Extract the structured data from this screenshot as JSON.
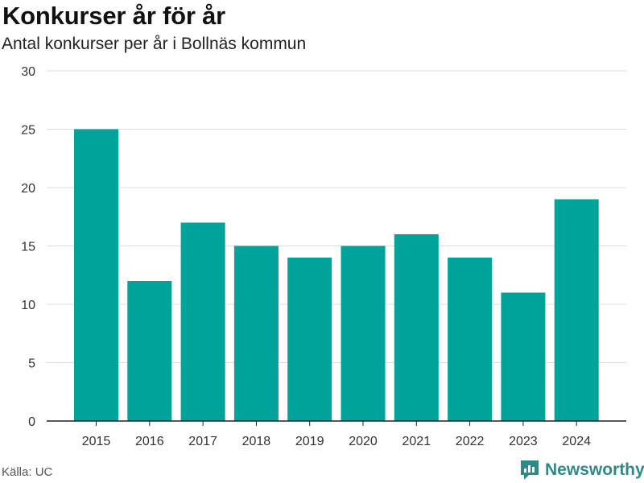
{
  "header": {
    "title": "Konkurser år för år",
    "subtitle": "Antal konkurser per år i Bollnäs kommun"
  },
  "footer": {
    "source": "Källa: UC",
    "brand": "Newsworthy"
  },
  "colors": {
    "bar": "#00a39a",
    "grid": "#dcdcdc",
    "axis": "#222222",
    "brand": "#2f8a86"
  },
  "chart_data": {
    "type": "bar",
    "title": "Konkurser år för år",
    "subtitle": "Antal konkurser per år i Bollnäs kommun",
    "xlabel": "",
    "ylabel": "",
    "categories": [
      "2015",
      "2016",
      "2017",
      "2018",
      "2019",
      "2020",
      "2021",
      "2022",
      "2023",
      "2024"
    ],
    "values": [
      25,
      12,
      17,
      15,
      14,
      15,
      16,
      14,
      11,
      19
    ],
    "ylim": [
      0,
      30
    ],
    "yticks": [
      0,
      5,
      10,
      15,
      20,
      25,
      30
    ],
    "grid": true,
    "legend": "none"
  }
}
